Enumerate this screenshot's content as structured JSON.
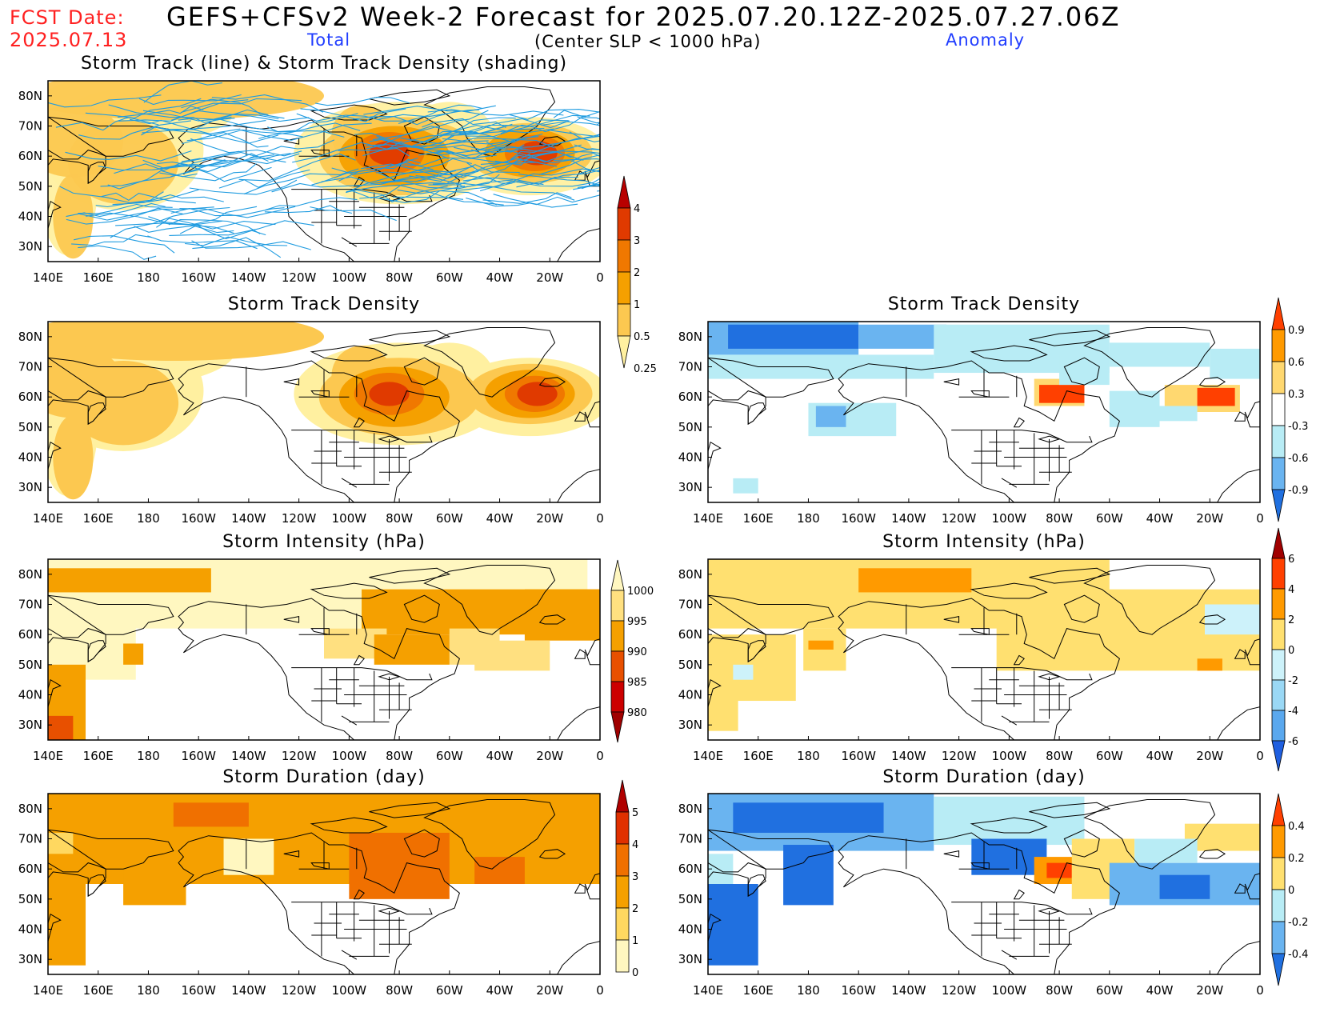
{
  "header": {
    "fcst_label": "FCST Date:",
    "fcst_date": "2025.07.13",
    "title": "GEFS+CFSv2 Week-2 Forecast for 2025.07.20.12Z-2025.07.27.06Z",
    "subtitle": "(Center SLP < 1000 hPa)",
    "total_label": "Total",
    "anomaly_label": "Anomaly"
  },
  "axes": {
    "lon_ticks": [
      "140E",
      "160E",
      "180",
      "160W",
      "140W",
      "120W",
      "100W",
      "80W",
      "60W",
      "40W",
      "20W",
      "0"
    ],
    "lat_ticks": [
      "80N",
      "70N",
      "60N",
      "50N",
      "40N",
      "30N"
    ]
  },
  "panels": [
    {
      "id": "track-total",
      "title": "Storm Track (line) & Storm Track Density (shading)"
    },
    {
      "id": "density-total",
      "title": "Storm Track Density"
    },
    {
      "id": "density-anom",
      "title": "Storm Track Density"
    },
    {
      "id": "intensity-total",
      "title": "Storm Intensity (hPa)"
    },
    {
      "id": "intensity-anom",
      "title": "Storm Intensity (hPa)"
    },
    {
      "id": "duration-total",
      "title": "Storm Duration (day)"
    },
    {
      "id": "duration-anom",
      "title": "Storm Duration (day)"
    }
  ],
  "colorbars": {
    "density_total": {
      "labels": [
        "4",
        "3",
        "2",
        "1",
        "0.5",
        "0.25"
      ],
      "colors": [
        "#b80000",
        "#e03a00",
        "#f07800",
        "#f5a000",
        "#fcc850",
        "#fff0a0"
      ]
    },
    "density_anom": {
      "labels": [
        "0.9",
        "0.6",
        "0.3",
        "-0.3",
        "-0.6",
        "-0.9"
      ],
      "colors": [
        "#ff4000",
        "#ff9a00",
        "#ffd870",
        "#ffffff",
        "#b8ecf5",
        "#6ab4f0",
        "#2070e0"
      ]
    },
    "intensity_total": {
      "labels": [
        "1000",
        "995",
        "990",
        "985",
        "980"
      ],
      "colors": [
        "#fff7c0",
        "#ffe080",
        "#f5a000",
        "#e85000",
        "#cc0000",
        "#a00000"
      ]
    },
    "intensity_anom": {
      "labels": [
        "6",
        "4",
        "2",
        "0",
        "-2",
        "-4",
        "-6"
      ],
      "colors": [
        "#a00000",
        "#ff4000",
        "#ff9a00",
        "#ffe070",
        "#cdf2fa",
        "#9ad8f5",
        "#5aa8ee",
        "#1f5fe0"
      ]
    },
    "duration_total": {
      "labels": [
        "5",
        "4",
        "3",
        "2",
        "1",
        "0"
      ],
      "colors": [
        "#b00000",
        "#e03000",
        "#f07000",
        "#f5a000",
        "#ffd860",
        "#fff7c0"
      ]
    },
    "duration_anom": {
      "labels": [
        "0.4",
        "0.2",
        "0",
        "-0.2",
        "-0.4"
      ],
      "colors": [
        "#ff4000",
        "#ff9a00",
        "#ffe070",
        "#b8ecf5",
        "#6ab4f0",
        "#2070e0"
      ]
    }
  },
  "colors": {
    "land_outline": "#000000",
    "track_line": "#1e9be0",
    "header_red": "#ff2020",
    "header_blue": "#1f3cff"
  }
}
